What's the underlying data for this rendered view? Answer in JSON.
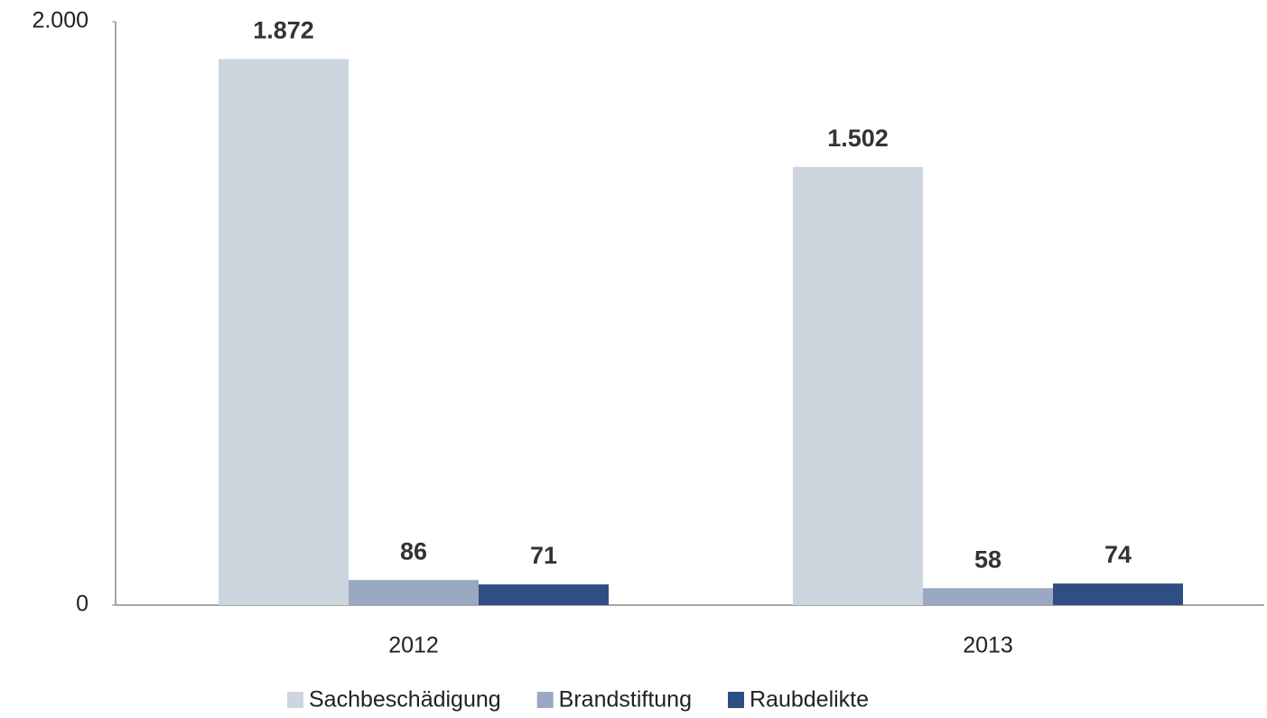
{
  "chart_data": {
    "type": "bar",
    "categories": [
      "2012",
      "2013"
    ],
    "series": [
      {
        "name": "Sachbeschädigung",
        "color": "#cdd5df",
        "values": [
          1872,
          1502
        ],
        "value_labels": [
          "1.872",
          "1.502"
        ]
      },
      {
        "name": "Brandstiftung",
        "color": "#9aa9c1",
        "values": [
          86,
          58
        ]
      },
      {
        "name": "Raubdelikte",
        "color": "#2f4e82",
        "values": [
          71,
          74
        ]
      }
    ],
    "ylim": [
      0,
      2000
    ],
    "yticks": [
      0,
      {
        "value": 2000,
        "label": "2.000"
      }
    ],
    "grid": false,
    "legend": "bottom"
  }
}
